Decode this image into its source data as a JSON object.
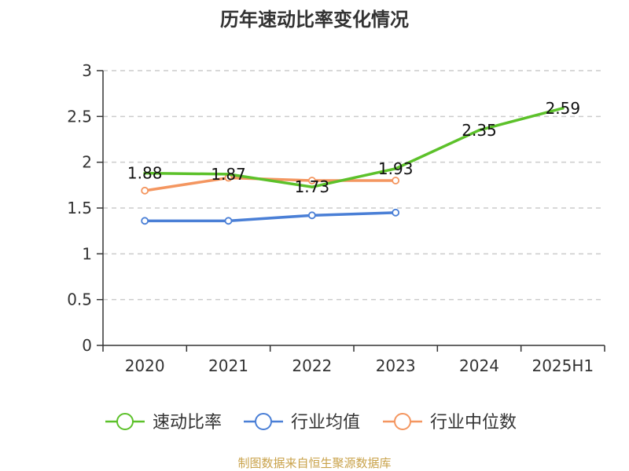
{
  "chart_data": {
    "type": "line",
    "title": "历年速动比率变化情况",
    "categories": [
      "2020",
      "2021",
      "2022",
      "2023",
      "2024",
      "2025H1"
    ],
    "ylim": [
      0,
      3
    ],
    "yticks": [
      "0",
      "0.5",
      "1",
      "1.5",
      "2",
      "2.5",
      "3"
    ],
    "grid": true,
    "legend_position": "bottom",
    "series": [
      {
        "name": "速动比率",
        "color": "#5cc12a",
        "values": [
          1.88,
          1.87,
          1.73,
          1.93,
          2.35,
          2.59
        ],
        "labels": [
          "1.88",
          "1.87",
          "1.73",
          "1.93",
          "2.35",
          "2.59"
        ]
      },
      {
        "name": "行业均值",
        "color": "#4a7fd6",
        "values": [
          1.36,
          1.36,
          1.42,
          1.45,
          null,
          null
        ]
      },
      {
        "name": "行业中位数",
        "color": "#f49660",
        "values": [
          1.69,
          1.83,
          1.8,
          1.8,
          null,
          null
        ]
      }
    ],
    "source": "制图数据来自恒生聚源数据库"
  }
}
